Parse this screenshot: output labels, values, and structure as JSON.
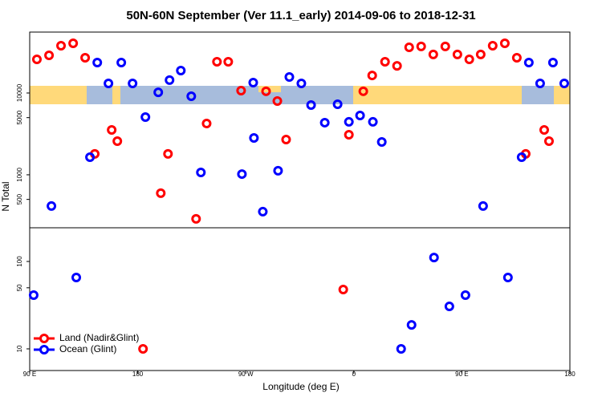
{
  "chart_data": [
    {
      "type": "scatter",
      "title": "50N-60N September (Ver 11.1_early)   2014-09-06 to 2018-12-31",
      "y_label": "N Total",
      "yscale": "log",
      "xlim": [
        90,
        540
      ],
      "ylim": [
        225,
        55600
      ],
      "yticks": [
        500,
        1000,
        5000,
        10000
      ],
      "series": [
        {
          "name": "Land (Nadir&Glint)",
          "color": "#ff0000",
          "x": [
            96.0,
            106.1,
            116.1,
            126.2,
            136.2,
            144.2,
            158.3,
            163.0,
            199.2,
            205.2,
            228.6,
            237.4,
            246.0,
            255.4,
            266.1,
            286.9,
            296.3,
            303.6,
            355.9,
            367.9,
            375.3,
            386.0,
            396.0,
            406.1,
            416.1,
            426.2,
            436.2,
            446.3,
            456.2,
            465.7,
            475.7,
            485.8,
            495.8,
            503.2,
            518.6,
            522.6
          ],
          "values": [
            25800,
            28900,
            37900,
            40500,
            27000,
            1800,
            3540,
            2580,
            596,
            1800,
            289,
            4240,
            24100,
            24100,
            10700,
            10500,
            7980,
            2700,
            3090,
            10500,
            16400,
            24100,
            21500,
            36200,
            37100,
            29600,
            37100,
            29600,
            25800,
            29600,
            37900,
            40500,
            27000,
            1800,
            3540,
            2580
          ]
        },
        {
          "name": "Ocean (Glint)",
          "color": "#0000ff",
          "x": [
            108.1,
            140.2,
            146.3,
            155.6,
            166.3,
            175.7,
            186.4,
            197.1,
            206.5,
            215.9,
            224.6,
            232.6,
            266.8,
            276.2,
            276.8,
            284.2,
            296.9,
            306.3,
            316.3,
            324.4,
            335.8,
            346.5,
            355.9,
            365.2,
            375.9,
            383.3,
            467.7,
            499.8,
            505.8,
            515.2,
            525.9,
            535.3
          ],
          "values": [
            415,
            1640,
            23600,
            13100,
            23600,
            13100,
            5080,
            10200,
            14400,
            18800,
            9140,
            1070,
            1020,
            13400,
            2820,
            354,
            1120,
            15700,
            13100,
            7130,
            4340,
            7290,
            4440,
            5310,
            4440,
            2520,
            415,
            1640,
            23600,
            13100,
            23600,
            13100
          ]
        }
      ]
    },
    {
      "type": "scatter",
      "x_label": "Longitude (deg E)",
      "yscale": "log",
      "legend": "bottom-left",
      "xlim": [
        90,
        540
      ],
      "ylim": [
        5.65,
        243
      ],
      "yticks": [
        10,
        50,
        100
      ],
      "xticks": [
        {
          "value": 90,
          "label": "90 E"
        },
        180,
        {
          "value": 270,
          "label": "90 W"
        },
        {
          "value": 360,
          "label": "0"
        },
        {
          "value": 450,
          "label": "90 E"
        },
        {
          "value": 540,
          "label": "180"
        }
      ],
      "series": [
        {
          "name": "Land (Nadir&Glint)",
          "color": "#ff0000",
          "x": [
            184.4,
            351.2
          ],
          "values": [
            10,
            47.7
          ]
        },
        {
          "name": "Ocean (Glint)",
          "color": "#0000ff",
          "x": [
            93.3,
            128.8,
            399.4,
            408.1,
            426.8,
            439.6,
            453.0,
            488.4
          ],
          "values": [
            41.2,
            65.6,
            10,
            18.8,
            111,
            30.6,
            41.2,
            65.6
          ]
        }
      ]
    }
  ]
}
